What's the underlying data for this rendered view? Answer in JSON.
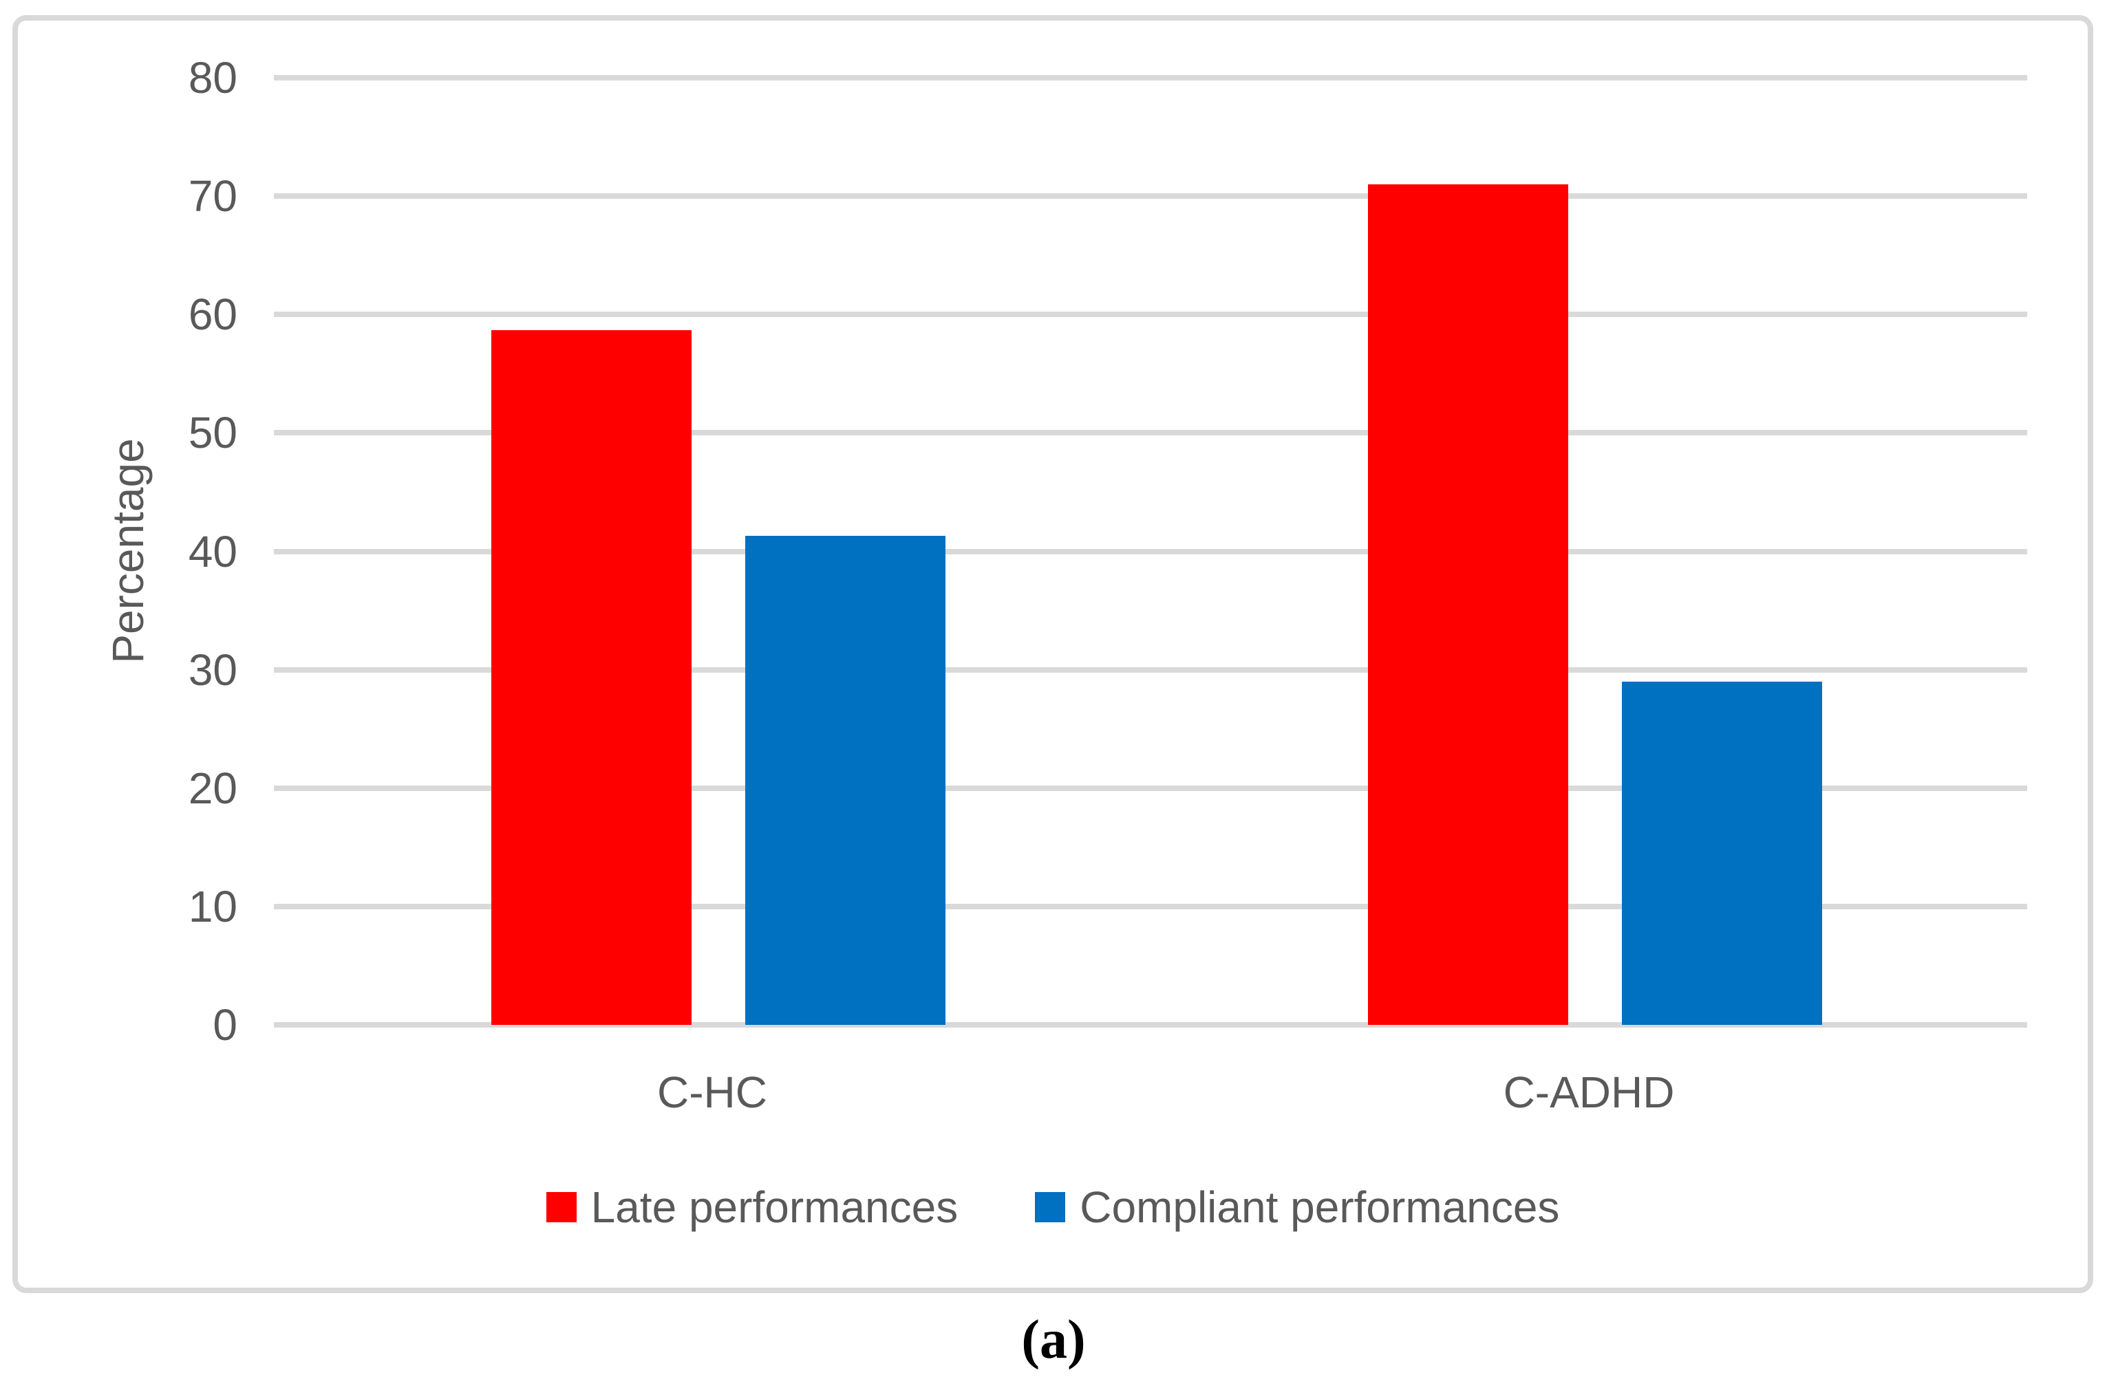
{
  "chart_data": {
    "type": "bar",
    "categories": [
      "C-HC",
      "C-ADHD"
    ],
    "series": [
      {
        "name": "Late performances",
        "color": "#FF0000",
        "values": [
          58.7,
          71
        ]
      },
      {
        "name": "Compliant performances",
        "color": "#0070C0",
        "values": [
          41.3,
          29
        ]
      }
    ],
    "title": "",
    "xlabel": "",
    "ylabel": "Percentage",
    "ylim": [
      0,
      80
    ],
    "ytick_step": 10,
    "grid": true,
    "legend_position": "bottom",
    "caption": "(a)"
  },
  "colors": {
    "gridline": "#D9D9D9",
    "chart_border": "#D9D9D9",
    "axis_text": "#595959"
  }
}
